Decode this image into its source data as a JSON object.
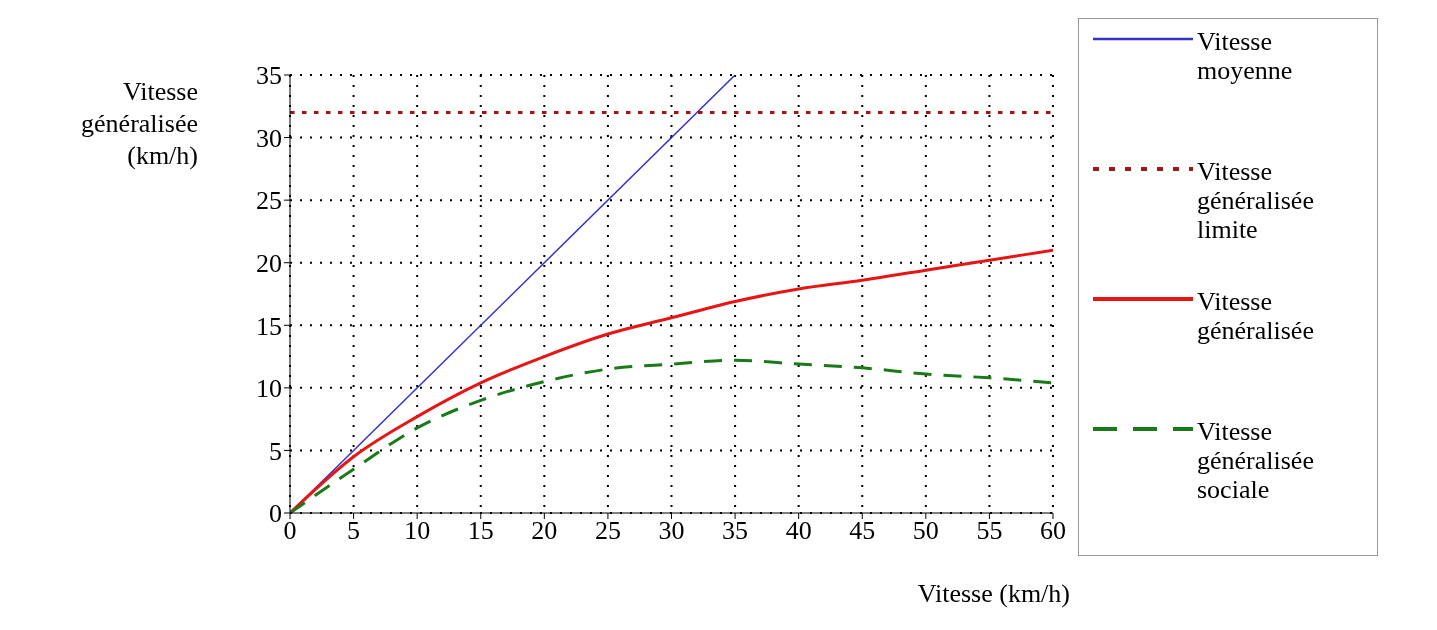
{
  "chart_data": {
    "type": "line",
    "xlabel": "Vitesse (km/h)",
    "ylabel": "Vitesse généralisée (km/h)",
    "xlim": [
      0,
      60
    ],
    "xticks": [
      0,
      5,
      10,
      15,
      20,
      25,
      30,
      35,
      40,
      45,
      50,
      55,
      60
    ],
    "ylim": [
      0,
      35
    ],
    "yticks": [
      0,
      5,
      10,
      15,
      20,
      25,
      30,
      35
    ],
    "grid": true,
    "legend": "right",
    "marker": "none",
    "series": [
      {
        "name": "Vitesse moyenne",
        "color": "#3333cc",
        "line_style": "solid",
        "x": [
          0,
          5,
          35
        ],
        "values": [
          0,
          5,
          35
        ]
      },
      {
        "name": "Vitesse généralisée limite",
        "color": "#a01515",
        "line_style": "dotted",
        "x": [
          0,
          60
        ],
        "values": [
          32,
          32
        ]
      },
      {
        "name": "Vitesse généralisée",
        "color": "#e81515",
        "line_style": "solid",
        "x": [
          0,
          5,
          10,
          15,
          20,
          25,
          30,
          35,
          40,
          45,
          50,
          55,
          60
        ],
        "values": [
          0,
          4.5,
          7.7,
          10.4,
          12.5,
          14.3,
          15.6,
          16.9,
          17.9,
          18.6,
          19.4,
          20.2,
          21
        ]
      },
      {
        "name": "Vitesse généralisée sociale",
        "color": "#1a7a1a",
        "line_style": "dashed",
        "x": [
          0,
          5,
          10,
          15,
          20,
          25,
          30,
          35,
          40,
          45,
          50,
          55,
          60
        ],
        "values": [
          0,
          3.5,
          6.8,
          9,
          10.5,
          11.5,
          11.9,
          12.2,
          11.9,
          11.6,
          11.1,
          10.8,
          10.4
        ]
      }
    ]
  }
}
